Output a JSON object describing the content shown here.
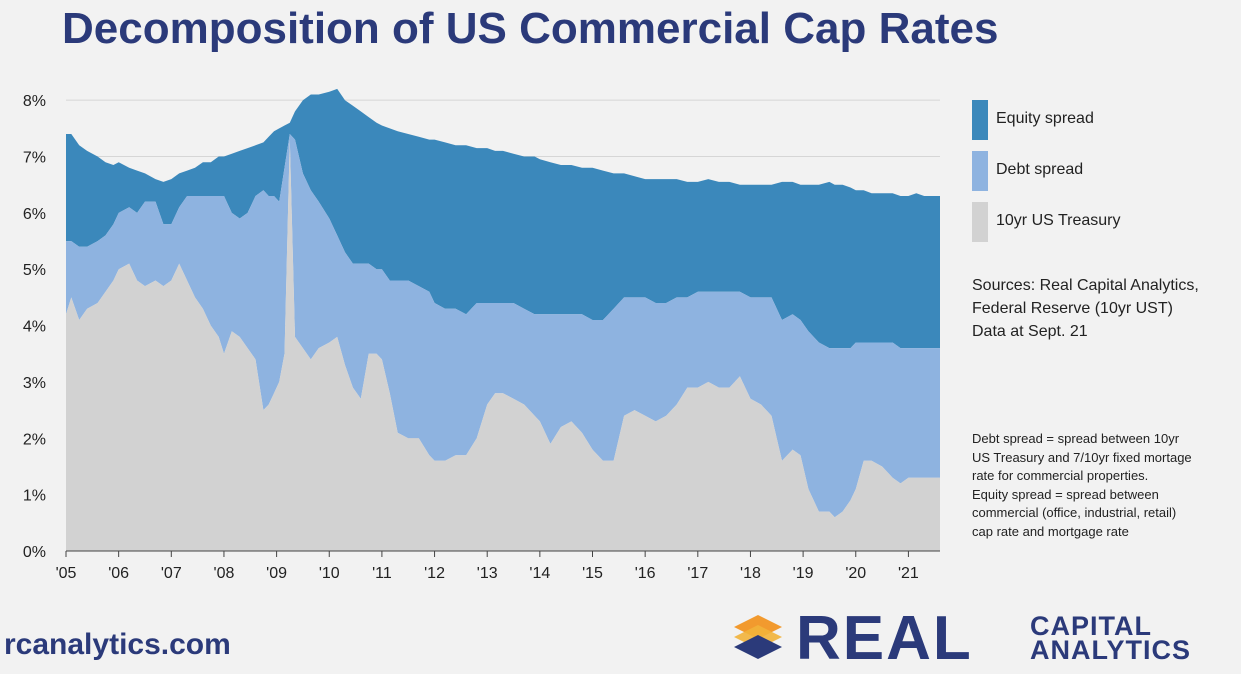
{
  "title": "Decomposition of US Commercial Cap Rates",
  "legend": [
    {
      "label": "Equity spread",
      "color": "#3b88bb"
    },
    {
      "label": "Debt spread",
      "color": "#8eb3e0"
    },
    {
      "label": "10yr US Treasury",
      "color": "#d2d2d2"
    }
  ],
  "sources": [
    "Sources: Real Capital Analytics,",
    "Federal Reserve (10yr UST)",
    "Data at Sept. 21"
  ],
  "note": [
    "Debt spread = spread between 10yr",
    "US Treasury and 7/10yr fixed mortage",
    "rate for commercial properties.",
    "Equity spread = spread between",
    "commercial (office, industrial, retail)",
    "cap rate and mortgage rate"
  ],
  "footer": {
    "website": "rcanalytics.com",
    "logo_word": "REAL",
    "logo_sub1": "CAPITAL",
    "logo_sub2": "ANALYTICS"
  },
  "chart_data": {
    "type": "area",
    "stacked": true,
    "x": [
      2005.0,
      2005.1,
      2005.25,
      2005.4,
      2005.6,
      2005.75,
      2005.9,
      2006.0,
      2006.2,
      2006.35,
      2006.5,
      2006.7,
      2006.85,
      2007.0,
      2007.15,
      2007.3,
      2007.45,
      2007.6,
      2007.75,
      2007.9,
      2008.0,
      2008.15,
      2008.3,
      2008.45,
      2008.6,
      2008.75,
      2008.85,
      2008.95,
      2009.05,
      2009.15,
      2009.25,
      2009.35,
      2009.5,
      2009.65,
      2009.8,
      2010.0,
      2010.15,
      2010.3,
      2010.45,
      2010.6,
      2010.75,
      2010.9,
      2011.0,
      2011.15,
      2011.3,
      2011.5,
      2011.7,
      2011.9,
      2012.0,
      2012.2,
      2012.4,
      2012.6,
      2012.8,
      2013.0,
      2013.15,
      2013.3,
      2013.5,
      2013.7,
      2013.9,
      2014.0,
      2014.2,
      2014.4,
      2014.6,
      2014.8,
      2015.0,
      2015.2,
      2015.4,
      2015.6,
      2015.8,
      2016.0,
      2016.2,
      2016.4,
      2016.6,
      2016.8,
      2017.0,
      2017.2,
      2017.4,
      2017.6,
      2017.8,
      2018.0,
      2018.2,
      2018.4,
      2018.6,
      2018.8,
      2018.95,
      2019.1,
      2019.3,
      2019.5,
      2019.6,
      2019.75,
      2019.9,
      2020.0,
      2020.15,
      2020.3,
      2020.5,
      2020.7,
      2020.85,
      2021.0,
      2021.15,
      2021.3,
      2021.45,
      2021.6
    ],
    "treasury": [
      4.2,
      4.5,
      4.1,
      4.3,
      4.4,
      4.6,
      4.8,
      5.0,
      5.1,
      4.8,
      4.7,
      4.8,
      4.7,
      4.8,
      5.1,
      4.8,
      4.5,
      4.3,
      4.0,
      3.8,
      3.5,
      3.9,
      3.8,
      3.6,
      3.4,
      2.5,
      2.6,
      2.8,
      3.0,
      3.5,
      7.3,
      3.8,
      3.6,
      3.4,
      3.6,
      3.7,
      3.8,
      3.3,
      2.9,
      2.7,
      3.5,
      3.5,
      3.4,
      2.8,
      2.1,
      2.0,
      2.0,
      1.7,
      1.6,
      1.6,
      1.7,
      1.7,
      2.0,
      2.6,
      2.8,
      2.8,
      2.7,
      2.6,
      2.4,
      2.3,
      1.9,
      2.2,
      2.3,
      2.1,
      1.8,
      1.6,
      1.6,
      2.4,
      2.5,
      2.4,
      2.3,
      2.4,
      2.6,
      2.9,
      2.9,
      3.0,
      2.9,
      2.9,
      3.1,
      2.7,
      2.6,
      2.4,
      1.6,
      1.8,
      1.7,
      1.1,
      0.7,
      0.7,
      0.6,
      0.7,
      0.9,
      1.1,
      1.6,
      1.6,
      1.5,
      1.3,
      1.2,
      1.3,
      1.3,
      1.3,
      1.3,
      1.3
    ],
    "debt_spread": [
      1.3,
      1.0,
      1.3,
      1.1,
      1.1,
      1.0,
      1.0,
      1.0,
      1.0,
      1.2,
      1.5,
      1.4,
      1.1,
      1.0,
      1.0,
      1.5,
      1.8,
      2.0,
      2.3,
      2.5,
      2.8,
      2.1,
      2.1,
      2.4,
      2.9,
      3.9,
      3.7,
      3.5,
      3.2,
      3.3,
      0.1,
      3.5,
      3.1,
      3.0,
      2.6,
      2.2,
      1.8,
      2.0,
      2.2,
      2.4,
      1.6,
      1.5,
      1.6,
      2.0,
      2.7,
      2.8,
      2.7,
      2.9,
      2.8,
      2.7,
      2.6,
      2.5,
      2.4,
      1.8,
      1.6,
      1.6,
      1.7,
      1.7,
      1.8,
      1.9,
      2.3,
      2.0,
      1.9,
      2.1,
      2.3,
      2.5,
      2.7,
      2.1,
      2.0,
      2.1,
      2.1,
      2.0,
      1.9,
      1.6,
      1.7,
      1.6,
      1.7,
      1.7,
      1.5,
      1.8,
      1.9,
      2.1,
      2.5,
      2.4,
      2.4,
      2.8,
      3.0,
      2.9,
      3.0,
      2.9,
      2.7,
      2.6,
      2.1,
      2.1,
      2.2,
      2.4,
      2.4,
      2.3,
      2.3,
      2.3,
      2.3,
      2.3
    ],
    "cap_rate": [
      7.4,
      7.4,
      7.2,
      7.1,
      7.0,
      6.9,
      6.85,
      6.9,
      6.8,
      6.75,
      6.7,
      6.6,
      6.55,
      6.6,
      6.7,
      6.75,
      6.8,
      6.9,
      6.9,
      7.0,
      7.0,
      7.05,
      7.1,
      7.15,
      7.2,
      7.25,
      7.35,
      7.45,
      7.5,
      7.55,
      7.6,
      7.8,
      8.0,
      8.1,
      8.1,
      8.15,
      8.2,
      8.0,
      7.9,
      7.8,
      7.7,
      7.6,
      7.55,
      7.5,
      7.45,
      7.4,
      7.35,
      7.3,
      7.3,
      7.25,
      7.2,
      7.2,
      7.15,
      7.15,
      7.1,
      7.1,
      7.05,
      7.0,
      7.0,
      6.95,
      6.9,
      6.85,
      6.85,
      6.8,
      6.8,
      6.75,
      6.7,
      6.7,
      6.65,
      6.6,
      6.6,
      6.6,
      6.6,
      6.55,
      6.55,
      6.6,
      6.55,
      6.55,
      6.5,
      6.5,
      6.5,
      6.5,
      6.55,
      6.55,
      6.5,
      6.5,
      6.5,
      6.55,
      6.5,
      6.5,
      6.45,
      6.4,
      6.4,
      6.35,
      6.35,
      6.35,
      6.3,
      6.3,
      6.35,
      6.3,
      6.3,
      6.3
    ],
    "ylim": [
      0,
      8.5
    ],
    "yticks": [
      0,
      1,
      2,
      3,
      4,
      5,
      6,
      7,
      8
    ],
    "ytick_labels": [
      "0%",
      "1%",
      "2%",
      "3%",
      "4%",
      "5%",
      "6%",
      "7%",
      "8%"
    ],
    "xlim": [
      2005,
      2021.6
    ],
    "xticks": [
      2005,
      2006,
      2007,
      2008,
      2009,
      2010,
      2011,
      2012,
      2013,
      2014,
      2015,
      2016,
      2017,
      2018,
      2019,
      2020,
      2021
    ],
    "xtick_labels": [
      "'05",
      "'06",
      "'07",
      "'08",
      "'09",
      "'10",
      "'11",
      "'12",
      "'13",
      "'14",
      "'15",
      "'16",
      "'17",
      "'18",
      "'19",
      "'20",
      "'21"
    ],
    "series_names": [
      "Equity spread",
      "Debt spread",
      "10yr US Treasury"
    ],
    "colors": {
      "equity": "#3b88bb",
      "debt": "#8eb3e0",
      "treasury": "#d2d2d2",
      "grid": "#d6d6d6"
    },
    "grid": true,
    "legend_position": "right"
  }
}
